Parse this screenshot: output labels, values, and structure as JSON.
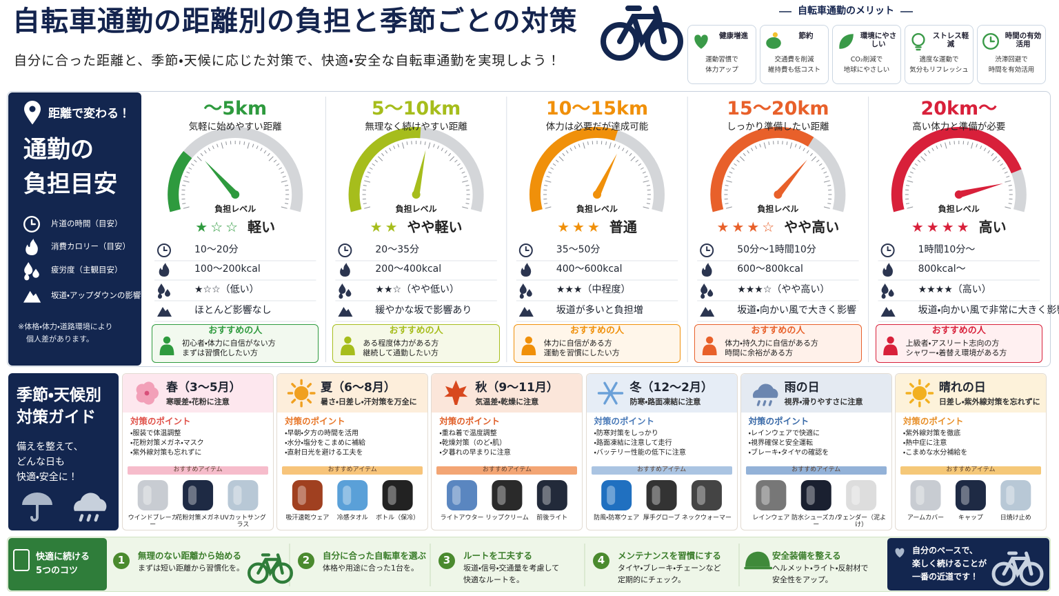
{
  "header": {
    "title": "自転車通勤の距離別の負担と季節ごとの対策",
    "subtitle": "自分に合った距離と、季節・天候に応じた対策で、快適・安全な自転車通勤を実現しよう！"
  },
  "merits": {
    "heading": "自転車通勤のメリット",
    "items": [
      {
        "label": "健康増進",
        "lines": [
          "運動習慣で",
          "体力アップ"
        ]
      },
      {
        "label": "節約",
        "lines": [
          "交通費を削減",
          "維持費も低コスト"
        ]
      },
      {
        "label": "環境にやさしい",
        "lines": [
          "CO₂削減で",
          "地球にやさしい"
        ]
      },
      {
        "label": "ストレス軽減",
        "lines": [
          "適度な運動で",
          "気分もリフレッシュ"
        ]
      },
      {
        "label": "時間の有効活用",
        "lines": [
          "渋滞回避で",
          "時間を有効活用"
        ]
      }
    ]
  },
  "distance": {
    "tag": "距離で変わる！",
    "title": [
      "通勤の",
      "負担目安"
    ],
    "legend": [
      "片道の時間（目安）",
      "消費カロリー（目安）",
      "疲労度（主観目安）",
      "坂道・アップダウンの影響"
    ],
    "note": [
      "※体格・体力・道路環境により",
      "個人差があります。"
    ],
    "level_label": "負担レベル",
    "recommend_title": "おすすめの人",
    "columns": [
      {
        "range": "～5km",
        "sub": "気軽に始めやすい距離",
        "stars": "★☆☆",
        "level": "軽い",
        "time": "10～20分",
        "kcal": "100～200kcal",
        "fatigue": "★☆☆（低い）",
        "slope": "ほとんど影響なし",
        "recommend": [
          "初心者・体力に自信がない方",
          "まずは習慣化したい方"
        ]
      },
      {
        "range": "5～10km",
        "sub": "無理なく続けやすい距離",
        "stars": "★★",
        "level": "やや軽い",
        "time": "20～35分",
        "kcal": "200～400kcal",
        "fatigue": "★★☆（やや低い）",
        "slope": "緩やかな坂で影響あり",
        "recommend": [
          "ある程度体力がある方",
          "継続して通勤したい方"
        ]
      },
      {
        "range": "10～15km",
        "sub": "体力は必要だが達成可能",
        "stars": "★★★",
        "level": "普通",
        "time": "35～50分",
        "kcal": "400～600kcal",
        "fatigue": "★★★（中程度）",
        "slope": "坂道が多いと負担増",
        "recommend": [
          "体力に自信がある方",
          "運動を習慣にしたい方"
        ]
      },
      {
        "range": "15～20km",
        "sub": "しっかり準備したい距離",
        "stars": "★★★☆",
        "level": "やや高い",
        "time": "50分～1時間10分",
        "kcal": "600～800kcal",
        "fatigue": "★★★☆（やや高い）",
        "slope": "坂道・向かい風で大きく影響",
        "recommend": [
          "体力・持久力に自信がある方",
          "時間に余裕がある方"
        ]
      },
      {
        "range": "20km～",
        "sub": "高い体力と準備が必要",
        "stars": "★★★★",
        "level": "高い",
        "time": "1時間10分～",
        "kcal": "800kcal～",
        "fatigue": "★★★★（高い）",
        "slope": "坂道・向かい風で非常に大きく影響",
        "recommend": [
          "上級者・アスリート志向の方",
          "シャワー・着替え環境がある方"
        ]
      }
    ]
  },
  "seasons": {
    "title": [
      "季節・天候別",
      "対策ガイド"
    ],
    "text": [
      "備えを整えて、",
      "どんな日も",
      "快適・安全に！"
    ],
    "points_heading": "対策のポイント",
    "items_heading": "おすすめアイテム",
    "cards": [
      {
        "title": "春（3～5月）",
        "sub": "寒暖差・花粉に注意",
        "points": [
          "・服装で体温調整",
          "・花粉対策メガネ・マスク",
          "・紫外線対策も忘れずに"
        ],
        "items": [
          "ウインドブレーカー",
          "花粉対策メガネ",
          "UVカットサングラス"
        ]
      },
      {
        "title": "夏（6～8月）",
        "sub": "暑さ・日差し・汗対策を万全に",
        "points": [
          "・早朝・夕方の時間を活用",
          "・水分・塩分をこまめに補給",
          "・直射日光を避ける工夫を"
        ],
        "items": [
          "吸汗速乾ウェア",
          "冷感タオル",
          "ボトル（保冷）"
        ]
      },
      {
        "title": "秋（9～11月）",
        "sub": "気温差・乾燥に注意",
        "points": [
          "・重ね着で温度調整",
          "・乾燥対策（のど・肌）",
          "・夕暮れの早まりに注意"
        ],
        "items": [
          "ライトアウター",
          "リップクリーム",
          "前後ライト"
        ]
      },
      {
        "title": "冬（12～2月）",
        "sub": "防寒・路面凍結に注意",
        "points": [
          "・防寒対策をしっかり",
          "・路面凍結に注意して走行",
          "・バッテリー性能の低下に注意"
        ],
        "items": [
          "防風・防寒ウェア",
          "厚手グローブ",
          "ネックウォーマー"
        ]
      },
      {
        "title": "雨の日",
        "sub": "視界・滑りやすさに注意",
        "points": [
          "・レインウェアで快適に",
          "・視界確保と安全運転",
          "・ブレーキ・タイヤの確認を"
        ],
        "items": [
          "レインウェア",
          "防水シューズカバー",
          "フェンダー（泥よけ）"
        ]
      },
      {
        "title": "晴れの日",
        "sub": "日差し・紫外線対策を忘れずに",
        "points": [
          "・紫外線対策を徹底",
          "・熱中症に注意",
          "・こまめな水分補給を"
        ],
        "items": [
          "アームカバー",
          "キャップ",
          "日焼け止め"
        ]
      }
    ]
  },
  "tips": {
    "title": [
      "快適に続ける",
      "5つのコツ"
    ],
    "items": [
      {
        "number": 1,
        "title": "無理のない距離から始める",
        "lines": [
          "まずは短い距離から習慣化を。"
        ]
      },
      {
        "number": 2,
        "title": "自分に合った自転車を選ぶ",
        "lines": [
          "体格や用途に合った1台を。"
        ]
      },
      {
        "number": 3,
        "title": "ルートを工夫する",
        "lines": [
          "坂道・信号・交通量を考慮して",
          "快適なルートを。"
        ]
      },
      {
        "number": 4,
        "title": "メンテナンスを習慣にする",
        "lines": [
          "タイヤ・ブレーキ・チェーンなど",
          "定期的にチェック。"
        ]
      },
      {
        "title": "安全装備を整える",
        "lines": [
          "ヘルメット・ライト・反射材で",
          "安全性をアップ。"
        ]
      }
    ],
    "closing": [
      "自分のペースで、",
      "楽しく続けることが",
      "一番の近道です！"
    ]
  }
}
